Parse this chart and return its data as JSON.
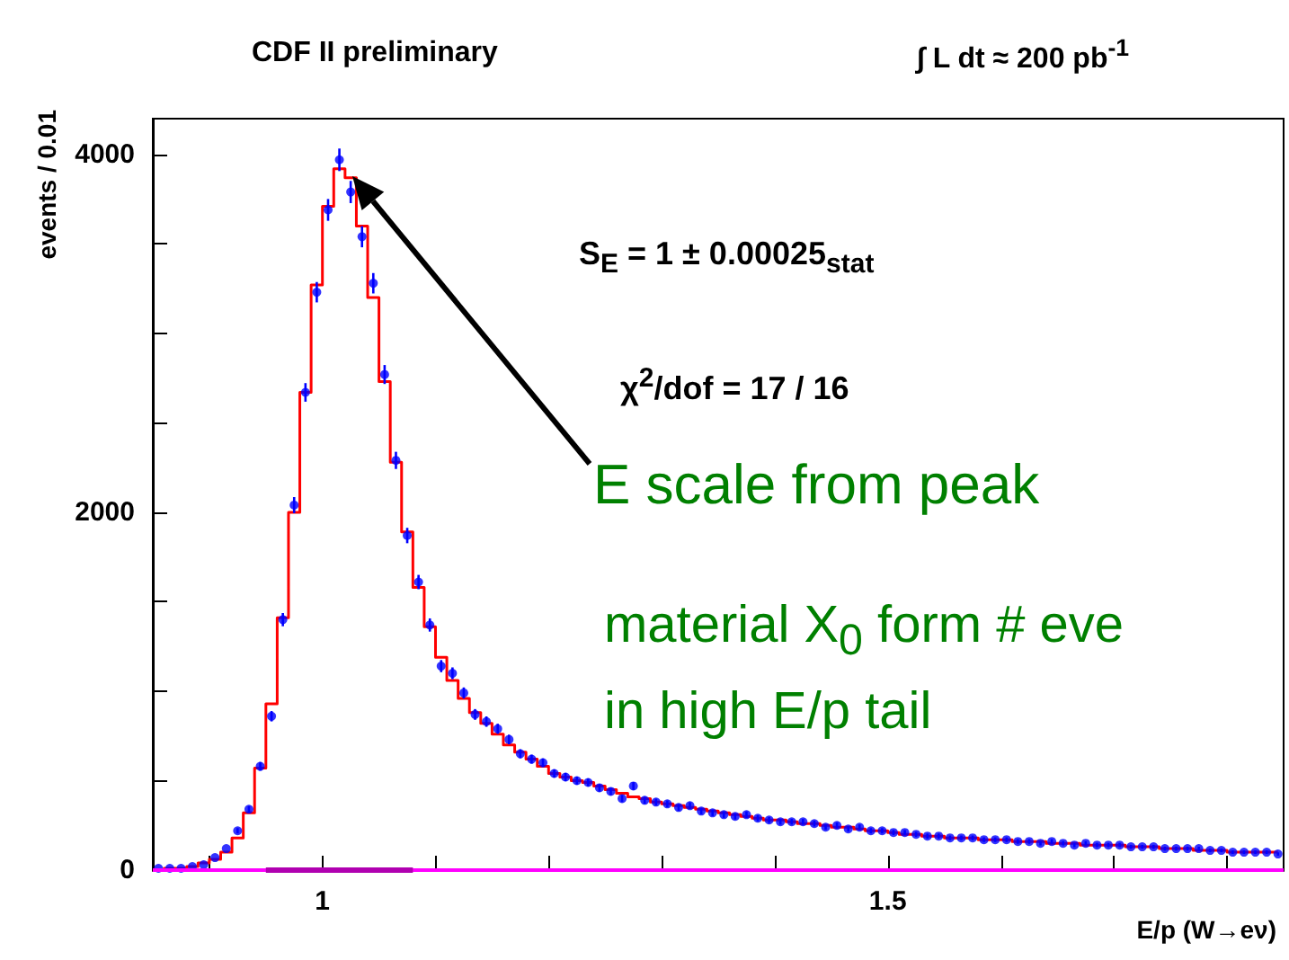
{
  "chart_data": {
    "type": "step",
    "title": "CDF II preliminary",
    "subtitle": "∫ L dt ≈ 200 pb$^{-1}$",
    "xlabel": "E/p (W→eν)",
    "ylabel": "events / 0.01",
    "annotations": [
      "S$_{E}$ = 1 ± 0.00025$_{stat}$",
      "χ$^{2}$/dof = 17 / 16",
      "E scale from peak",
      "material X$_{0}$ form # eve",
      "in high E/p tail"
    ],
    "x": [
      0.855,
      0.865,
      0.875,
      0.885,
      0.895,
      0.905,
      0.915,
      0.925,
      0.935,
      0.945,
      0.955,
      0.965,
      0.975,
      0.985,
      0.995,
      1.005,
      1.015,
      1.025,
      1.035,
      1.045,
      1.055,
      1.065,
      1.075,
      1.085,
      1.095,
      1.105,
      1.115,
      1.125,
      1.135,
      1.145,
      1.155,
      1.165,
      1.175,
      1.185,
      1.195,
      1.205,
      1.215,
      1.225,
      1.235,
      1.245,
      1.255,
      1.265,
      1.275,
      1.285,
      1.295,
      1.305,
      1.315,
      1.325,
      1.335,
      1.345,
      1.355,
      1.365,
      1.375,
      1.385,
      1.395,
      1.405,
      1.415,
      1.425,
      1.435,
      1.445,
      1.455,
      1.465,
      1.475,
      1.485,
      1.495,
      1.505,
      1.515,
      1.525,
      1.535,
      1.545,
      1.555,
      1.565,
      1.575,
      1.585,
      1.595,
      1.605,
      1.615,
      1.625,
      1.635,
      1.645,
      1.655,
      1.665,
      1.675,
      1.685,
      1.695,
      1.705,
      1.715,
      1.725,
      1.735,
      1.745,
      1.755,
      1.765,
      1.775,
      1.785,
      1.795,
      1.805,
      1.815,
      1.825,
      1.835,
      1.845
    ],
    "series": [
      {
        "color": "#ff0000",
        "values": [
          0,
          10,
          10,
          20,
          40,
          60,
          100,
          180,
          320,
          570,
          930,
          1410,
          2000,
          2670,
          3270,
          3710,
          3920,
          3870,
          3600,
          3200,
          2730,
          2280,
          1890,
          1580,
          1360,
          1190,
          1060,
          960,
          880,
          820,
          760,
          700,
          660,
          620,
          580,
          540,
          520,
          500,
          490,
          470,
          450,
          430,
          410,
          400,
          380,
          370,
          360,
          350,
          340,
          330,
          320,
          310,
          300,
          290,
          280,
          280,
          270,
          260,
          260,
          250,
          240,
          240,
          230,
          220,
          220,
          210,
          200,
          200,
          190,
          190,
          180,
          180,
          180,
          170,
          170,
          170,
          160,
          160,
          160,
          150,
          150,
          150,
          140,
          140,
          140,
          140,
          130,
          130,
          130,
          120,
          120,
          120,
          110,
          110,
          110,
          100,
          100,
          100,
          100,
          100
        ]
      },
      {
        "type": "scatter",
        "color": "#0000ff",
        "marker": "circle",
        "values": [
          10,
          10,
          10,
          20,
          30,
          70,
          120,
          220,
          340,
          580,
          860,
          1400,
          2040,
          2670,
          3230,
          3690,
          3970,
          3790,
          3540,
          3280,
          2770,
          2290,
          1870,
          1610,
          1370,
          1140,
          1100,
          990,
          870,
          830,
          790,
          730,
          650,
          620,
          600,
          540,
          520,
          500,
          490,
          460,
          440,
          400,
          470,
          390,
          380,
          370,
          350,
          360,
          330,
          320,
          310,
          300,
          310,
          290,
          280,
          270,
          270,
          270,
          260,
          240,
          250,
          230,
          240,
          220,
          220,
          210,
          210,
          200,
          190,
          190,
          180,
          180,
          180,
          170,
          170,
          170,
          160,
          160,
          150,
          160,
          150,
          140,
          150,
          140,
          140,
          140,
          130,
          130,
          130,
          120,
          120,
          120,
          120,
          110,
          110,
          100,
          100,
          100,
          100,
          90
        ],
        "errors": [
          null,
          null,
          null,
          null,
          null,
          null,
          null,
          15,
          18,
          24,
          29,
          37,
          45,
          52,
          57,
          61,
          63,
          62,
          59,
          57,
          53,
          48,
          43,
          40,
          37,
          34,
          33,
          31,
          30,
          29,
          28,
          27,
          25,
          25,
          24,
          23,
          23,
          22,
          22,
          21,
          21,
          20,
          22,
          20,
          19,
          19,
          19,
          19,
          18,
          18,
          18,
          17,
          18,
          17,
          17,
          16,
          16,
          16,
          16,
          15,
          16,
          15,
          15,
          15,
          15,
          14,
          14,
          14,
          14,
          14,
          13,
          13,
          13,
          13,
          13,
          13,
          13,
          13,
          12,
          13,
          12,
          12,
          12,
          12,
          12,
          12,
          11,
          11,
          11,
          11,
          11,
          11,
          11,
          10,
          10,
          10,
          10,
          10,
          10,
          9
        ]
      },
      {
        "type": "line",
        "color": "#b000b0",
        "x": [
          0.95,
          1.08
        ],
        "values": [
          0,
          0
        ]
      }
    ],
    "xlim": [
      0.85,
      1.85
    ],
    "xticks": [
      {
        "value": 0.9,
        "label": null
      },
      1,
      {
        "value": 1.1,
        "label": null
      },
      {
        "value": 1.2,
        "label": null
      },
      {
        "value": 1.3,
        "label": null
      },
      {
        "value": 1.4,
        "label": null
      },
      1.5,
      {
        "value": 1.6,
        "label": null
      },
      {
        "value": 1.7,
        "label": null
      },
      {
        "value": 1.8,
        "label": null
      }
    ],
    "ylim": [
      0,
      4200
    ],
    "yticks": [
      0,
      {
        "value": 500,
        "label": null
      },
      {
        "value": 1000,
        "label": null
      },
      {
        "value": 1500,
        "label": null
      },
      2000,
      {
        "value": 2500,
        "label": null
      },
      {
        "value": 3000,
        "label": null
      },
      {
        "value": 3500,
        "label": null
      },
      4000
    ],
    "ref_lines": [
      {
        "axis": "y",
        "value": 0,
        "color": "#ff00ff"
      }
    ],
    "grid": false
  }
}
